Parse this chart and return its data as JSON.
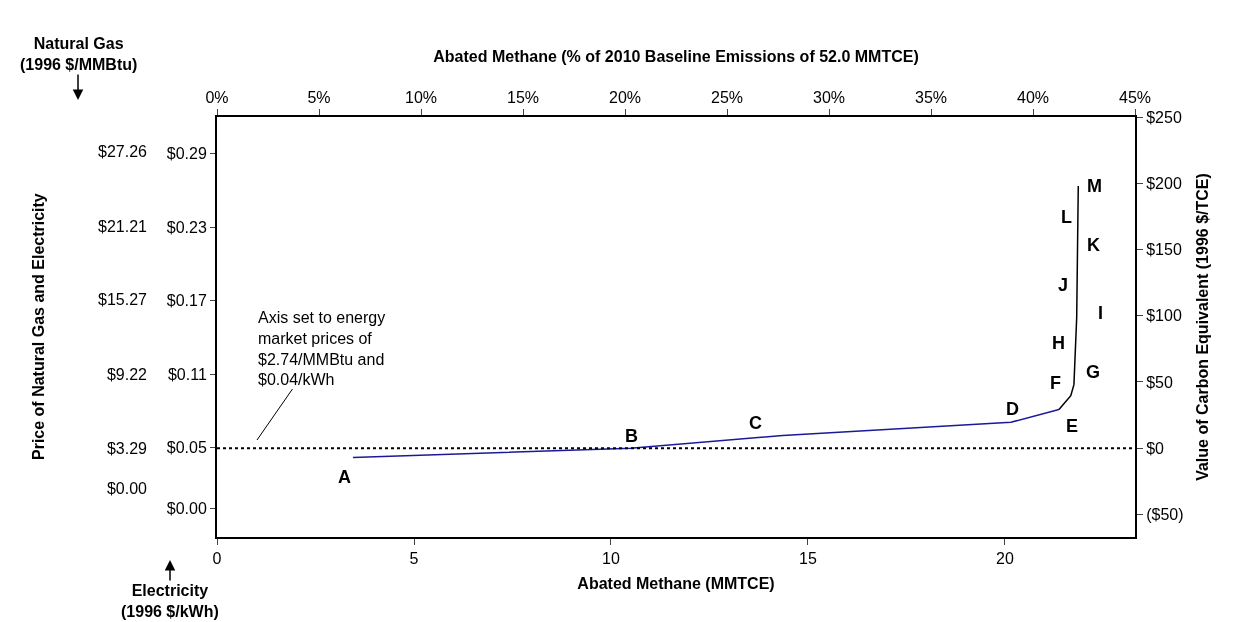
{
  "chart_data": {
    "type": "line",
    "xlabel": "Abated Methane (MMTCE)",
    "x2label": "Abated Methane (% of 2010 Baseline Emissions of 52.0 MMTCE)",
    "ylabel": "Price of Natural Gas and Electricity",
    "y2label": "Value of Carbon Equivalent (1996 $/TCE)",
    "xlim": [
      0,
      23.3
    ],
    "xticks": [
      0,
      5,
      10,
      15,
      20
    ],
    "x2lim": [
      0,
      45
    ],
    "x2ticks": [
      {
        "value": 0,
        "label": "0%"
      },
      {
        "value": 5,
        "label": "5%"
      },
      {
        "value": 10,
        "label": "10%"
      },
      {
        "value": 15,
        "label": "15%"
      },
      {
        "value": 20,
        "label": "20%"
      },
      {
        "value": 25,
        "label": "25%"
      },
      {
        "value": 30,
        "label": "30%"
      },
      {
        "value": 35,
        "label": "35%"
      },
      {
        "value": 40,
        "label": "40%"
      },
      {
        "value": 45,
        "label": "45%"
      }
    ],
    "ylim": [
      -0.023,
      0.32
    ],
    "yticks": [
      {
        "value": 0.29,
        "label": "$0.29"
      },
      {
        "value": 0.23,
        "label": "$0.23"
      },
      {
        "value": 0.17,
        "label": "$0.17"
      },
      {
        "value": 0.11,
        "label": "$0.11"
      },
      {
        "value": 0.05,
        "label": "$0.05"
      },
      {
        "value": 0,
        "label": "$0.00"
      }
    ],
    "y3lim": [
      -3.9,
      30.0
    ],
    "y3ticks": [
      {
        "value": 27.26,
        "label": "$27.26"
      },
      {
        "value": 21.21,
        "label": "$21.21"
      },
      {
        "value": 15.27,
        "label": "$15.27"
      },
      {
        "value": 9.22,
        "label": "$9.22"
      },
      {
        "value": 3.29,
        "label": "$3.29"
      },
      {
        "value": 0,
        "label": "$0.00"
      }
    ],
    "y2lim": [
      -67,
      250
    ],
    "y2ticks": [
      {
        "value": 250,
        "label": "$250"
      },
      {
        "value": 200,
        "label": "$200"
      },
      {
        "value": 150,
        "label": "$150"
      },
      {
        "value": 100,
        "label": "$100"
      },
      {
        "value": 50,
        "label": "$50"
      },
      {
        "value": 0,
        "label": "$0"
      },
      {
        "value": -50,
        "label": "($50)"
      }
    ],
    "series": [
      {
        "color": "#1a1a99",
        "axis": "y2",
        "x": [
          3.45,
          10.5,
          14.36,
          20.15,
          21.37
        ],
        "values": [
          -7,
          0,
          9.7,
          19.6,
          29.2
        ]
      },
      {
        "color": "#000000",
        "axis": "y2",
        "x": [
          21.37,
          21.67,
          21.75,
          21.82,
          21.86
        ],
        "values": [
          29.2,
          39.7,
          48,
          98.5,
          198
        ]
      }
    ],
    "ref_lines": [
      {
        "axis": "y2",
        "value": 0,
        "color": "#000000",
        "line_style": "dotted"
      }
    ],
    "annotations": [
      "Natural Gas\n(1996 $/MMBtu)",
      "Electricity\n(1996 $/kWh)",
      "Axis set to energy\nmarket prices of\n$2.74/MMBtu and\n$0.04/kWh",
      "A",
      "B",
      "C",
      "D",
      "E",
      "F",
      "G",
      "H",
      "I",
      "J",
      "K",
      "L",
      "M"
    ],
    "grid": false,
    "marker": "none",
    "line_style": "solid"
  }
}
